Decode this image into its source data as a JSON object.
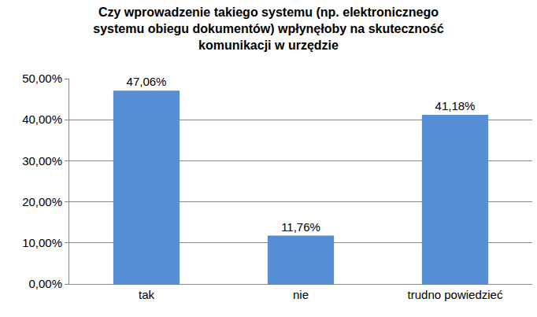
{
  "chart_data": {
    "type": "bar",
    "title": "Czy wprowadzenie takiego systemu (np. elektronicznego\nsystemu obiegu dokumentów) wpłynęłoby na skuteczność\nkomunikacji w urzędzie",
    "categories": [
      "tak",
      "nie",
      "trudno powiedzieć"
    ],
    "values": [
      47.06,
      11.76,
      41.18
    ],
    "value_labels": [
      "47,06%",
      "11,76%",
      "41,18%"
    ],
    "color": "#558ed5",
    "ylim": [
      0,
      50
    ],
    "yticks": [
      {
        "value": 0,
        "label": "0,00%"
      },
      {
        "value": 10,
        "label": "10,00%"
      },
      {
        "value": 20,
        "label": "20,00%"
      },
      {
        "value": 30,
        "label": "30,00%"
      },
      {
        "value": 40,
        "label": "40,00%"
      },
      {
        "value": 50,
        "label": "50,00%"
      }
    ],
    "grid": true,
    "data_labels": true
  }
}
